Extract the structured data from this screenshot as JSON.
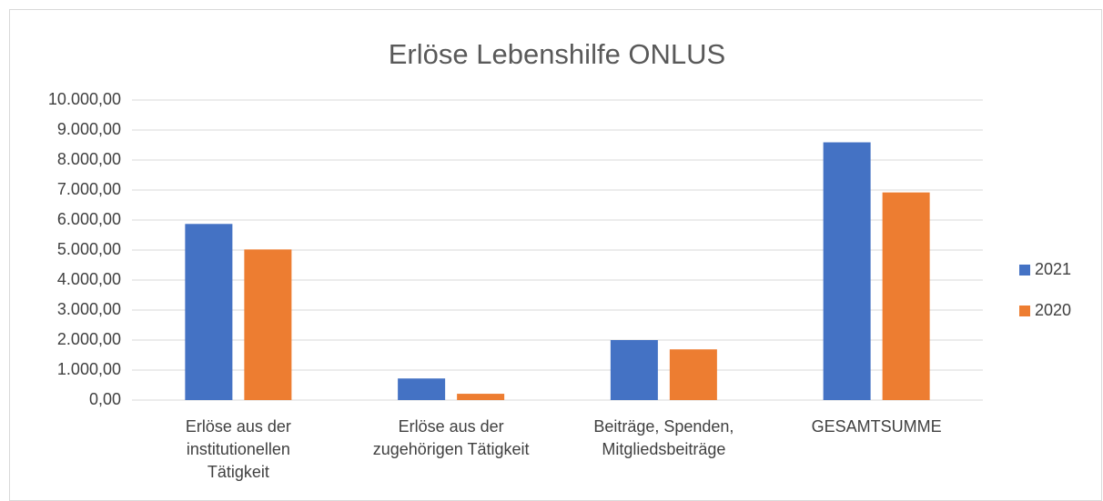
{
  "chart_data": {
    "type": "bar",
    "title": "Erlöse Lebenshilfe ONLUS",
    "categories": [
      "Erlöse aus der institutionellen Tätigkeit",
      "Erlöse aus der zugehörigen Tätigkeit",
      "Beiträge, Spenden, Mitgliedsbeiträge",
      "GESAMTSUMME"
    ],
    "series": [
      {
        "name": "2021",
        "color": "#4472c4",
        "values": [
          5870,
          720,
          2000,
          8590
        ]
      },
      {
        "name": "2020",
        "color": "#ed7d31",
        "values": [
          5020,
          210,
          1690,
          6920
        ]
      }
    ],
    "ylim": [
      0,
      10000
    ],
    "yticks": [
      {
        "value": 0,
        "label": "0,00"
      },
      {
        "value": 1000,
        "label": "1.000,00"
      },
      {
        "value": 2000,
        "label": "2.000,00"
      },
      {
        "value": 3000,
        "label": "3.000,00"
      },
      {
        "value": 4000,
        "label": "4.000,00"
      },
      {
        "value": 5000,
        "label": "5.000,00"
      },
      {
        "value": 6000,
        "label": "6.000,00"
      },
      {
        "value": 7000,
        "label": "7.000,00"
      },
      {
        "value": 8000,
        "label": "8.000,00"
      },
      {
        "value": 9000,
        "label": "9.000,00"
      },
      {
        "value": 10000,
        "label": "10.000,00"
      }
    ],
    "grid": true,
    "legend": "right"
  }
}
